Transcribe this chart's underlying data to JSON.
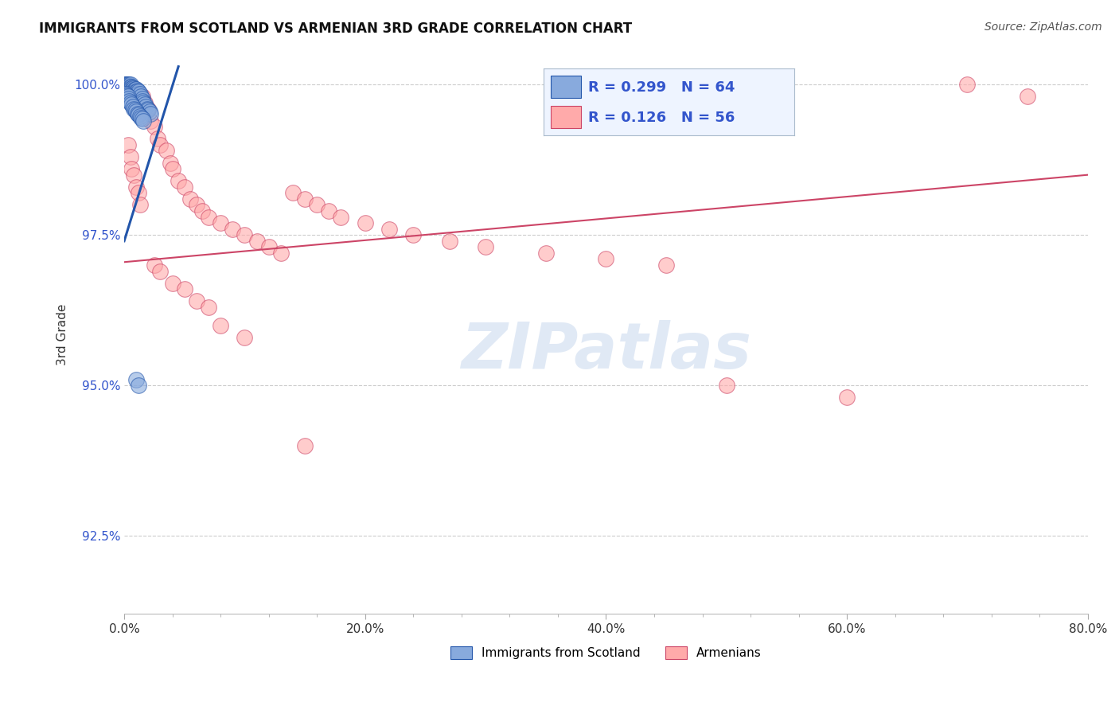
{
  "title": "IMMIGRANTS FROM SCOTLAND VS ARMENIAN 3RD GRADE CORRELATION CHART",
  "source": "Source: ZipAtlas.com",
  "ylabel": "3rd Grade",
  "xlim": [
    0.0,
    0.8
  ],
  "ylim": [
    0.912,
    1.005
  ],
  "xtick_labels": [
    "0.0%",
    "",
    "",
    "",
    "",
    "20.0%",
    "",
    "",
    "",
    "",
    "40.0%",
    "",
    "",
    "",
    "",
    "60.0%",
    "",
    "",
    "",
    "",
    "80.0%"
  ],
  "xtick_vals": [
    0.0,
    0.04,
    0.08,
    0.12,
    0.16,
    0.2,
    0.24,
    0.28,
    0.32,
    0.36,
    0.4,
    0.44,
    0.48,
    0.52,
    0.56,
    0.6,
    0.64,
    0.68,
    0.72,
    0.76,
    0.8
  ],
  "ytick_labels": [
    "92.5%",
    "95.0%",
    "97.5%",
    "100.0%"
  ],
  "ytick_vals": [
    0.925,
    0.95,
    0.975,
    1.0
  ],
  "grid_color": "#cccccc",
  "background_color": "#ffffff",
  "blue_color": "#88aadd",
  "pink_color": "#ffaaaa",
  "blue_R": 0.299,
  "blue_N": 64,
  "pink_R": 0.126,
  "pink_N": 56,
  "blue_line_color": "#2255aa",
  "pink_line_color": "#cc4466",
  "watermark_text": "ZIPatlas",
  "blue_scatter_x": [
    0.001,
    0.001,
    0.001,
    0.002,
    0.002,
    0.002,
    0.002,
    0.003,
    0.003,
    0.003,
    0.003,
    0.004,
    0.004,
    0.004,
    0.004,
    0.005,
    0.005,
    0.005,
    0.006,
    0.006,
    0.006,
    0.007,
    0.007,
    0.007,
    0.008,
    0.008,
    0.009,
    0.009,
    0.01,
    0.01,
    0.01,
    0.011,
    0.011,
    0.012,
    0.013,
    0.014,
    0.015,
    0.015,
    0.016,
    0.017,
    0.018,
    0.019,
    0.02,
    0.021,
    0.022,
    0.001,
    0.002,
    0.003,
    0.003,
    0.004,
    0.005,
    0.006,
    0.007,
    0.008,
    0.009,
    0.01,
    0.011,
    0.012,
    0.013,
    0.014,
    0.015,
    0.016,
    0.01,
    0.012
  ],
  "blue_scatter_y": [
    1.0,
    1.0,
    0.9998,
    1.0,
    1.0,
    0.9998,
    0.9995,
    1.0,
    0.9998,
    0.9995,
    0.9992,
    1.0,
    0.9998,
    0.9995,
    0.9992,
    1.0,
    0.9997,
    0.9993,
    0.9997,
    0.9994,
    0.999,
    0.9995,
    0.9991,
    0.9987,
    0.9994,
    0.999,
    0.9993,
    0.9989,
    0.9992,
    0.9988,
    0.9983,
    0.999,
    0.9985,
    0.9988,
    0.9985,
    0.998,
    0.9977,
    0.9972,
    0.997,
    0.9967,
    0.9963,
    0.996,
    0.9958,
    0.9955,
    0.9952,
    0.9985,
    0.9982,
    0.998,
    0.9976,
    0.9973,
    0.997,
    0.9967,
    0.9963,
    0.996,
    0.9958,
    0.9955,
    0.9952,
    0.995,
    0.9947,
    0.9945,
    0.9943,
    0.994,
    0.951,
    0.95
  ],
  "pink_scatter_x": [
    0.002,
    0.003,
    0.005,
    0.006,
    0.008,
    0.01,
    0.012,
    0.013,
    0.015,
    0.017,
    0.02,
    0.022,
    0.025,
    0.028,
    0.03,
    0.035,
    0.038,
    0.04,
    0.045,
    0.05,
    0.055,
    0.06,
    0.065,
    0.07,
    0.08,
    0.09,
    0.1,
    0.11,
    0.12,
    0.13,
    0.14,
    0.15,
    0.16,
    0.17,
    0.18,
    0.2,
    0.22,
    0.24,
    0.27,
    0.3,
    0.35,
    0.4,
    0.45,
    0.5,
    0.6,
    0.7,
    0.75,
    0.025,
    0.03,
    0.04,
    0.05,
    0.06,
    0.07,
    0.08,
    0.1,
    0.15
  ],
  "pink_scatter_y": [
    0.9985,
    0.99,
    0.988,
    0.986,
    0.985,
    0.983,
    0.982,
    0.98,
    0.998,
    0.997,
    0.996,
    0.994,
    0.993,
    0.991,
    0.99,
    0.989,
    0.987,
    0.986,
    0.984,
    0.983,
    0.981,
    0.98,
    0.979,
    0.978,
    0.977,
    0.976,
    0.975,
    0.974,
    0.973,
    0.972,
    0.982,
    0.981,
    0.98,
    0.979,
    0.978,
    0.977,
    0.976,
    0.975,
    0.974,
    0.973,
    0.972,
    0.971,
    0.97,
    0.95,
    0.948,
    1.0,
    0.998,
    0.97,
    0.969,
    0.967,
    0.966,
    0.964,
    0.963,
    0.96,
    0.958,
    0.94
  ],
  "blue_trend_x": [
    0.0,
    0.045
  ],
  "blue_trend_y": [
    0.974,
    1.003
  ],
  "pink_trend_x": [
    0.0,
    0.8
  ],
  "pink_trend_y": [
    0.9705,
    0.985
  ]
}
